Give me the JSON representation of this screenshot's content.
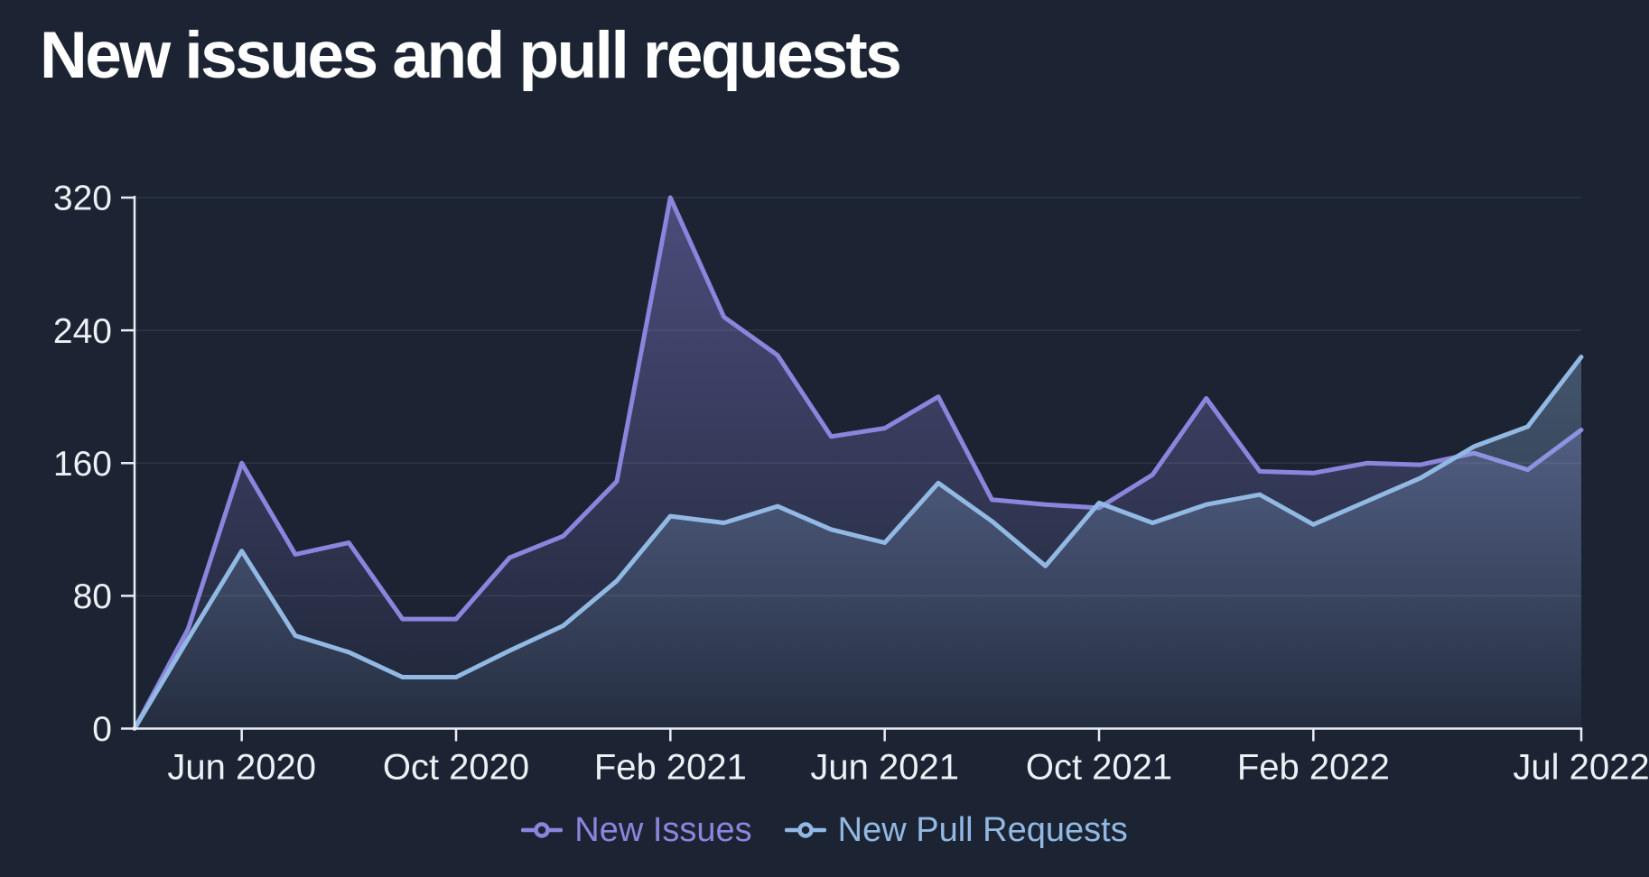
{
  "title": "New issues and pull requests",
  "colors": {
    "background": "#1c2433",
    "title": "#ffffff",
    "axis": "#e9edf3",
    "tick_label": "#edf0f5",
    "grid": "rgba(237,240,245,0.09)",
    "issues": "#8c85de",
    "pull_requests": "#92b9e3"
  },
  "legend": {
    "items": [
      {
        "label": "New Issues",
        "color": "#8c85de"
      },
      {
        "label": "New Pull Requests",
        "color": "#92b9e3"
      }
    ]
  },
  "chart_data": {
    "type": "area",
    "title": "New issues and pull requests",
    "xlabel": "",
    "ylabel": "",
    "ylim": [
      0,
      320
    ],
    "y_ticks": [
      0,
      80,
      160,
      240,
      320
    ],
    "grid": "horizontal",
    "legend_position": "bottom",
    "x": [
      "Apr 2020",
      "May 2020",
      "Jun 2020",
      "Jul 2020",
      "Aug 2020",
      "Sep 2020",
      "Oct 2020",
      "Nov 2020",
      "Dec 2020",
      "Jan 2021",
      "Feb 2021",
      "Mar 2021",
      "Apr 2021",
      "May 2021",
      "Jun 2021",
      "Jul 2021",
      "Aug 2021",
      "Sep 2021",
      "Oct 2021",
      "Nov 2021",
      "Dec 2021",
      "Jan 2022",
      "Feb 2022",
      "Mar 2022",
      "Apr 2022",
      "May 2022",
      "Jun 2022",
      "Jul 2022"
    ],
    "x_tick_labels": [
      {
        "label": "Jun 2020",
        "index": 2
      },
      {
        "label": "Oct 2020",
        "index": 6
      },
      {
        "label": "Feb 2021",
        "index": 10
      },
      {
        "label": "Jun 2021",
        "index": 14
      },
      {
        "label": "Oct 2021",
        "index": 18
      },
      {
        "label": "Feb 2022",
        "index": 22
      },
      {
        "label": "Jul 2022",
        "index": 27
      }
    ],
    "series": [
      {
        "name": "New Issues",
        "color": "#8c85de",
        "values": [
          0,
          60,
          160,
          105,
          112,
          66,
          66,
          103,
          116,
          149,
          320,
          248,
          225,
          176,
          181,
          200,
          138,
          135,
          133,
          153,
          199,
          155,
          154,
          160,
          159,
          166,
          156,
          180
        ]
      },
      {
        "name": "New Pull Requests",
        "color": "#92b9e3",
        "values": [
          0,
          54,
          107,
          56,
          46,
          31,
          31,
          47,
          62,
          89,
          128,
          124,
          134,
          120,
          112,
          148,
          125,
          98,
          136,
          124,
          135,
          141,
          123,
          137,
          151,
          170,
          182,
          224
        ]
      }
    ]
  }
}
